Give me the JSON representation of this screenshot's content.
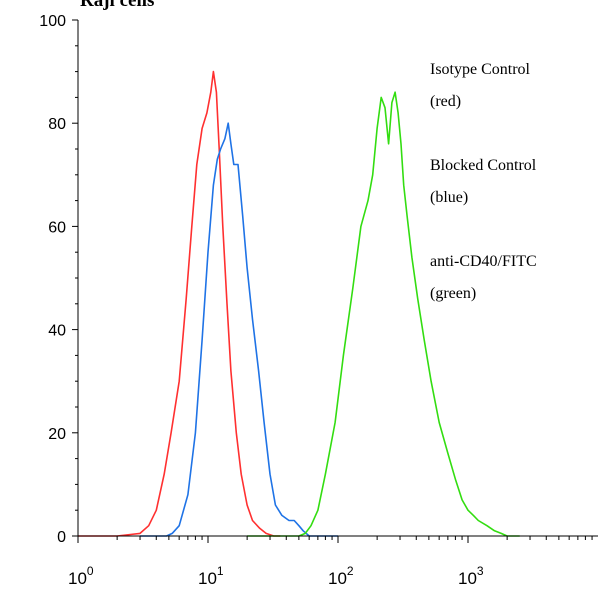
{
  "chart_data": {
    "type": "line",
    "title": "Raji cells",
    "xlabel": "",
    "ylabel": "",
    "xscale": "log",
    "xlim": [
      1,
      10000
    ],
    "ylim": [
      0,
      100
    ],
    "grid": false,
    "legend_position": "top-right",
    "x_ticks": [
      {
        "value": 1,
        "base": "10",
        "exp": "0"
      },
      {
        "value": 10,
        "base": "10",
        "exp": "1"
      },
      {
        "value": 100,
        "base": "10",
        "exp": "2"
      },
      {
        "value": 1000,
        "base": "10",
        "exp": "3"
      }
    ],
    "y_ticks": [
      {
        "value": 0,
        "label": "0"
      },
      {
        "value": 20,
        "label": "20"
      },
      {
        "value": 40,
        "label": "40"
      },
      {
        "value": 60,
        "label": "60"
      },
      {
        "value": 80,
        "label": "80"
      },
      {
        "value": 100,
        "label": "100"
      }
    ],
    "annotations": [
      {
        "lines": [
          "Isotype Control",
          "(red)"
        ]
      },
      {
        "lines": [
          "Blocked Control",
          "(blue)"
        ]
      },
      {
        "lines": [
          "anti-CD40/FITC",
          "(green)"
        ]
      }
    ],
    "series": [
      {
        "color": "#ff3030",
        "x": [
          1,
          2,
          3,
          3.5,
          4,
          4.6,
          5.2,
          6,
          6.8,
          7.5,
          8.2,
          9,
          9.8,
          10.5,
          11,
          11.6,
          12.2,
          13,
          14,
          15,
          16.5,
          18,
          20,
          22,
          25,
          28,
          32,
          36
        ],
        "y": [
          0,
          0,
          0.5,
          2,
          5,
          12,
          20,
          30,
          46,
          60,
          72,
          79,
          82,
          86,
          90,
          86,
          75,
          60,
          45,
          32,
          20,
          12,
          6,
          3,
          1.5,
          0.5,
          0,
          0
        ]
      },
      {
        "color": "#1f73e6",
        "x": [
          3,
          4.8,
          5.3,
          6,
          7,
          8,
          9,
          10,
          11,
          11.8,
          12.5,
          13.5,
          14.3,
          15,
          15.8,
          17,
          18.5,
          20,
          22,
          24.5,
          27,
          30,
          33,
          37,
          42,
          46,
          50,
          54,
          60,
          70,
          100
        ],
        "y": [
          0,
          0,
          0.5,
          2,
          8,
          20,
          38,
          55,
          68,
          73,
          75,
          77,
          80,
          76,
          72,
          72,
          62,
          52,
          42,
          32,
          22,
          12,
          6,
          4,
          3,
          3,
          2,
          1,
          0,
          0,
          0
        ]
      },
      {
        "color": "#33dd11",
        "x": [
          20,
          50,
          56,
          62,
          70,
          80,
          95,
          110,
          130,
          150,
          170,
          185,
          200,
          215,
          230,
          245,
          260,
          275,
          290,
          305,
          320,
          340,
          370,
          410,
          460,
          520,
          600,
          700,
          800,
          900,
          1000,
          1100,
          1200,
          1400,
          1600,
          1800,
          2000,
          2500
        ],
        "y": [
          0,
          0,
          0.5,
          2,
          5,
          12,
          22,
          35,
          48,
          60,
          65,
          70,
          79,
          85,
          83,
          76,
          84,
          86,
          82,
          76,
          68,
          62,
          54,
          46,
          38,
          30,
          22,
          16,
          11,
          7,
          5,
          4,
          3,
          2,
          1,
          0.5,
          0,
          0
        ]
      }
    ]
  }
}
